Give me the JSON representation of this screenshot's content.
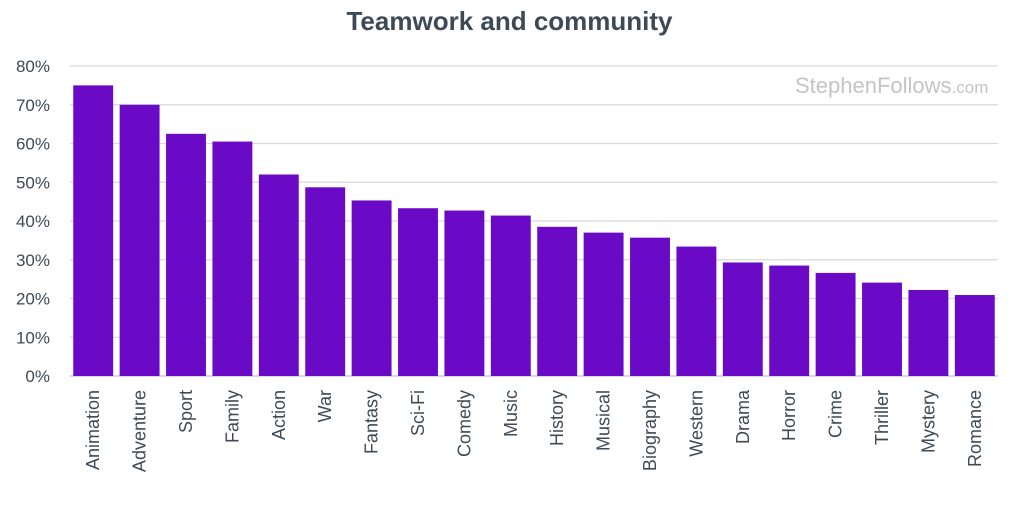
{
  "chart_data": {
    "type": "bar",
    "title": "Teamwork and community",
    "watermark": {
      "main": "StephenFollows",
      "suffix": ".com"
    },
    "categories": [
      "Animation",
      "Adventure",
      "Sport",
      "Family",
      "Action",
      "War",
      "Fantasy",
      "Sci-Fi",
      "Comedy",
      "Music",
      "History",
      "Musical",
      "Biography",
      "Western",
      "Drama",
      "Horror",
      "Crime",
      "Thriller",
      "Mystery",
      "Romance"
    ],
    "values": [
      75,
      70,
      62.5,
      60.5,
      52,
      48.7,
      45.3,
      43.3,
      42.7,
      41.4,
      38.5,
      37,
      35.7,
      33.4,
      29.3,
      28.5,
      26.6,
      24.1,
      22.2,
      20.9
    ],
    "ylim": [
      0,
      80
    ],
    "yticks": [
      0,
      10,
      20,
      30,
      40,
      50,
      60,
      70,
      80
    ],
    "ytick_suffix": "%",
    "bar_color": "#6a0ac6",
    "grid_color": "#d9d9d9",
    "grid": true,
    "xlabel": "",
    "ylabel": ""
  }
}
